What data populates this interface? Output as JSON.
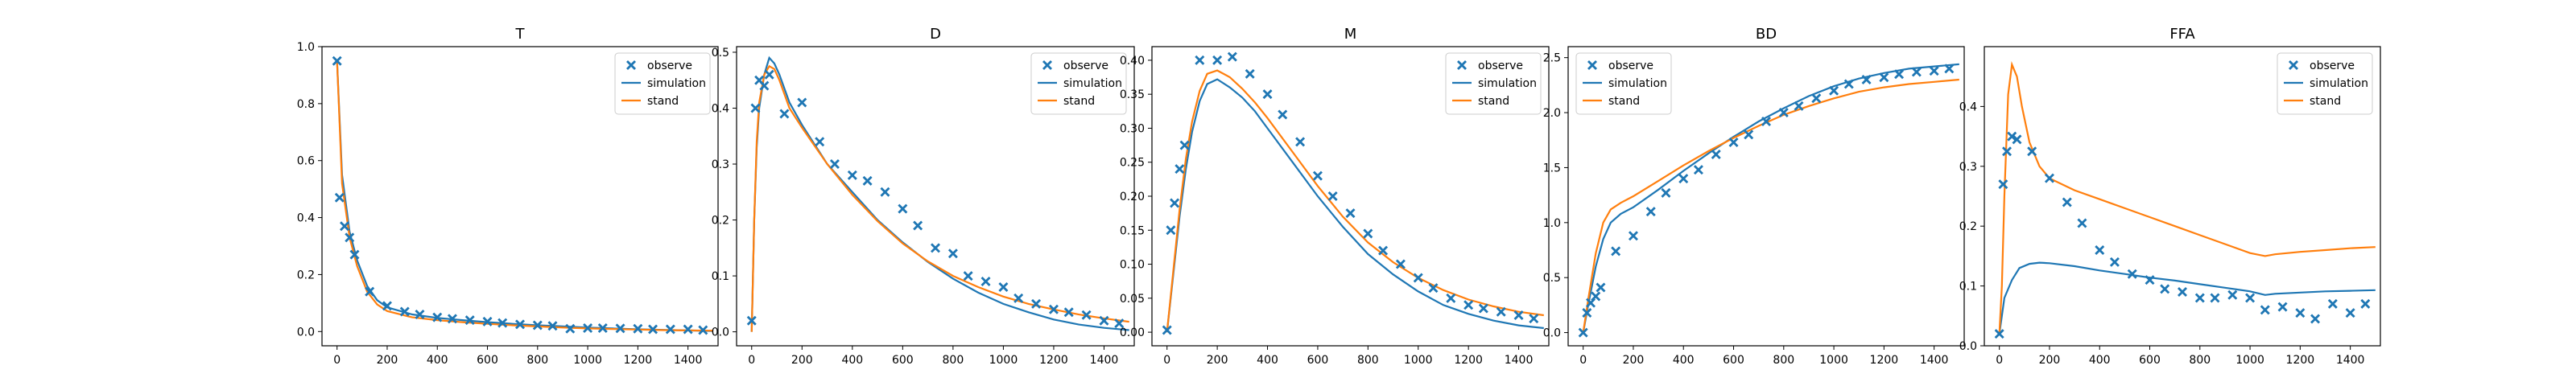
{
  "figure": {
    "legend_labels": [
      "observe",
      "simulation",
      "stand"
    ],
    "colors": {
      "observe": "#1f77b4",
      "simulation": "#1f77b4",
      "stand": "#ff7f0e"
    }
  },
  "chart_data": [
    {
      "type": "line",
      "title": "T",
      "xlabel": "",
      "ylabel": "",
      "xlim": [
        -60,
        1520
      ],
      "ylim": [
        -0.05,
        1.0
      ],
      "xticks": [
        0,
        200,
        400,
        600,
        800,
        1000,
        1200,
        1400
      ],
      "yticks": [
        0.0,
        0.2,
        0.4,
        0.6,
        0.8,
        1.0
      ],
      "ytick_labels": [
        "0.0",
        "0.2",
        "0.4",
        "0.6",
        "0.8",
        "1.0"
      ],
      "legend_position": "upper right",
      "series": [
        {
          "name": "observe",
          "kind": "scatter",
          "x": [
            0,
            10,
            30,
            50,
            70,
            130,
            200,
            270,
            330,
            400,
            460,
            530,
            600,
            660,
            730,
            800,
            860,
            930,
            1000,
            1060,
            1130,
            1200,
            1260,
            1330,
            1400,
            1460
          ],
          "y": [
            0.95,
            0.47,
            0.37,
            0.33,
            0.27,
            0.14,
            0.09,
            0.07,
            0.06,
            0.05,
            0.045,
            0.04,
            0.035,
            0.03,
            0.025,
            0.022,
            0.02,
            0.01,
            0.012,
            0.012,
            0.011,
            0.01,
            0.008,
            0.008,
            0.008,
            0.005
          ]
        },
        {
          "name": "simulation",
          "kind": "line",
          "x": [
            0,
            20,
            50,
            80,
            120,
            160,
            200,
            300,
            400,
            500,
            600,
            700,
            800,
            900,
            1000,
            1100,
            1200,
            1300,
            1400,
            1500
          ],
          "y": [
            0.95,
            0.55,
            0.35,
            0.25,
            0.16,
            0.11,
            0.085,
            0.06,
            0.048,
            0.04,
            0.033,
            0.027,
            0.022,
            0.018,
            0.014,
            0.011,
            0.008,
            0.006,
            0.004,
            0.002
          ]
        },
        {
          "name": "stand",
          "kind": "line",
          "x": [
            0,
            20,
            50,
            80,
            120,
            160,
            200,
            300,
            400,
            500,
            600,
            700,
            800,
            900,
            1000,
            1100,
            1200,
            1300,
            1400,
            1500
          ],
          "y": [
            0.95,
            0.52,
            0.33,
            0.23,
            0.14,
            0.095,
            0.072,
            0.05,
            0.04,
            0.033,
            0.027,
            0.022,
            0.018,
            0.014,
            0.011,
            0.009,
            0.007,
            0.005,
            0.004,
            0.003
          ]
        }
      ]
    },
    {
      "type": "line",
      "title": "D",
      "xlabel": "",
      "ylabel": "",
      "xlim": [
        -60,
        1520
      ],
      "ylim": [
        -0.025,
        0.51
      ],
      "xticks": [
        0,
        200,
        400,
        600,
        800,
        1000,
        1200,
        1400
      ],
      "yticks": [
        0.0,
        0.1,
        0.2,
        0.3,
        0.4,
        0.5
      ],
      "ytick_labels": [
        "0.0",
        "0.1",
        "0.2",
        "0.3",
        "0.4",
        "0.5"
      ],
      "legend_position": "upper right",
      "series": [
        {
          "name": "observe",
          "kind": "scatter",
          "x": [
            0,
            15,
            30,
            50,
            70,
            130,
            200,
            270,
            330,
            400,
            460,
            530,
            600,
            660,
            730,
            800,
            860,
            930,
            1000,
            1060,
            1130,
            1200,
            1260,
            1330,
            1400,
            1460
          ],
          "y": [
            0.02,
            0.4,
            0.45,
            0.44,
            0.46,
            0.39,
            0.41,
            0.34,
            0.3,
            0.28,
            0.27,
            0.25,
            0.22,
            0.19,
            0.15,
            0.14,
            0.1,
            0.09,
            0.08,
            0.06,
            0.05,
            0.04,
            0.035,
            0.03,
            0.02,
            0.015
          ]
        },
        {
          "name": "simulation",
          "kind": "line",
          "x": [
            0,
            10,
            20,
            30,
            50,
            70,
            90,
            110,
            150,
            200,
            300,
            400,
            500,
            600,
            700,
            800,
            900,
            1000,
            1100,
            1200,
            1300,
            1400,
            1500
          ],
          "y": [
            0.0,
            0.2,
            0.33,
            0.4,
            0.46,
            0.49,
            0.48,
            0.46,
            0.41,
            0.37,
            0.3,
            0.25,
            0.2,
            0.16,
            0.125,
            0.095,
            0.07,
            0.05,
            0.035,
            0.022,
            0.013,
            0.007,
            0.003
          ]
        },
        {
          "name": "stand",
          "kind": "line",
          "x": [
            0,
            10,
            20,
            30,
            50,
            70,
            90,
            110,
            150,
            200,
            300,
            400,
            500,
            600,
            700,
            800,
            900,
            1000,
            1100,
            1200,
            1300,
            1400,
            1500
          ],
          "y": [
            0.0,
            0.2,
            0.34,
            0.41,
            0.46,
            0.475,
            0.47,
            0.45,
            0.4,
            0.365,
            0.3,
            0.245,
            0.198,
            0.158,
            0.126,
            0.1,
            0.08,
            0.063,
            0.05,
            0.04,
            0.031,
            0.024,
            0.018
          ]
        }
      ]
    },
    {
      "type": "line",
      "title": "M",
      "xlabel": "",
      "ylabel": "",
      "xlim": [
        -60,
        1520
      ],
      "ylim": [
        -0.02,
        0.42
      ],
      "xticks": [
        0,
        200,
        400,
        600,
        800,
        1000,
        1200,
        1400
      ],
      "yticks": [
        0.0,
        0.05,
        0.1,
        0.15,
        0.2,
        0.25,
        0.3,
        0.35,
        0.4
      ],
      "ytick_labels": [
        "0.00",
        "0.05",
        "0.10",
        "0.15",
        "0.20",
        "0.25",
        "0.30",
        "0.35",
        "0.40"
      ],
      "legend_position": "upper right",
      "series": [
        {
          "name": "observe",
          "kind": "scatter",
          "x": [
            0,
            15,
            30,
            50,
            70,
            130,
            200,
            260,
            330,
            400,
            460,
            530,
            600,
            660,
            730,
            800,
            860,
            930,
            1000,
            1060,
            1130,
            1200,
            1260,
            1330,
            1400,
            1460
          ],
          "y": [
            0.003,
            0.15,
            0.19,
            0.24,
            0.275,
            0.4,
            0.4,
            0.405,
            0.38,
            0.35,
            0.32,
            0.28,
            0.23,
            0.2,
            0.175,
            0.145,
            0.12,
            0.1,
            0.08,
            0.065,
            0.05,
            0.04,
            0.035,
            0.03,
            0.025,
            0.02
          ]
        },
        {
          "name": "simulation",
          "kind": "line",
          "x": [
            0,
            25,
            50,
            75,
            100,
            130,
            160,
            200,
            250,
            300,
            350,
            400,
            500,
            600,
            700,
            800,
            900,
            1000,
            1100,
            1200,
            1300,
            1400,
            1500
          ],
          "y": [
            0.0,
            0.085,
            0.17,
            0.24,
            0.295,
            0.34,
            0.365,
            0.372,
            0.36,
            0.345,
            0.325,
            0.3,
            0.25,
            0.2,
            0.155,
            0.115,
            0.085,
            0.06,
            0.04,
            0.027,
            0.017,
            0.01,
            0.006
          ]
        },
        {
          "name": "stand",
          "kind": "line",
          "x": [
            0,
            25,
            50,
            75,
            100,
            130,
            160,
            200,
            250,
            300,
            350,
            400,
            500,
            600,
            700,
            800,
            900,
            1000,
            1100,
            1200,
            1300,
            1400,
            1500
          ],
          "y": [
            0.0,
            0.09,
            0.18,
            0.255,
            0.31,
            0.355,
            0.38,
            0.385,
            0.375,
            0.358,
            0.338,
            0.315,
            0.265,
            0.215,
            0.17,
            0.132,
            0.103,
            0.08,
            0.062,
            0.048,
            0.038,
            0.03,
            0.025
          ]
        }
      ]
    },
    {
      "type": "line",
      "title": "BD",
      "xlabel": "",
      "ylabel": "",
      "xlim": [
        -60,
        1520
      ],
      "ylim": [
        -0.12,
        2.6
      ],
      "xticks": [
        0,
        200,
        400,
        600,
        800,
        1000,
        1200,
        1400
      ],
      "yticks": [
        0.0,
        0.5,
        1.0,
        1.5,
        2.0,
        2.5
      ],
      "ytick_labels": [
        "0.0",
        "0.5",
        "1.0",
        "1.5",
        "2.0",
        "2.5"
      ],
      "legend_position": "upper left",
      "series": [
        {
          "name": "observe",
          "kind": "scatter",
          "x": [
            0,
            15,
            30,
            50,
            70,
            130,
            200,
            270,
            330,
            400,
            460,
            530,
            600,
            660,
            730,
            800,
            860,
            930,
            1000,
            1060,
            1130,
            1200,
            1260,
            1330,
            1400,
            1460
          ],
          "y": [
            0.0,
            0.18,
            0.27,
            0.33,
            0.41,
            0.74,
            0.88,
            1.1,
            1.27,
            1.4,
            1.48,
            1.62,
            1.73,
            1.8,
            1.92,
            2.0,
            2.06,
            2.13,
            2.2,
            2.26,
            2.3,
            2.32,
            2.35,
            2.37,
            2.38,
            2.4
          ]
        },
        {
          "name": "simulation",
          "kind": "line",
          "x": [
            0,
            20,
            50,
            80,
            110,
            150,
            200,
            300,
            400,
            500,
            600,
            700,
            800,
            900,
            1000,
            1100,
            1200,
            1300,
            1400,
            1500
          ],
          "y": [
            0.0,
            0.25,
            0.6,
            0.85,
            1.0,
            1.08,
            1.14,
            1.3,
            1.47,
            1.63,
            1.78,
            1.92,
            2.04,
            2.15,
            2.24,
            2.31,
            2.36,
            2.4,
            2.42,
            2.44
          ]
        },
        {
          "name": "stand",
          "kind": "line",
          "x": [
            0,
            20,
            50,
            80,
            110,
            150,
            200,
            300,
            400,
            500,
            600,
            700,
            800,
            900,
            1000,
            1100,
            1200,
            1300,
            1400,
            1500
          ],
          "y": [
            0.0,
            0.3,
            0.72,
            1.0,
            1.12,
            1.18,
            1.24,
            1.38,
            1.52,
            1.65,
            1.77,
            1.88,
            1.98,
            2.06,
            2.13,
            2.19,
            2.23,
            2.26,
            2.28,
            2.3
          ]
        }
      ]
    },
    {
      "type": "line",
      "title": "FFA",
      "xlabel": "",
      "ylabel": "",
      "xlim": [
        -60,
        1520
      ],
      "ylim": [
        0.0,
        0.5
      ],
      "xticks": [
        0,
        200,
        400,
        600,
        800,
        1000,
        1200,
        1400
      ],
      "yticks": [
        0.0,
        0.1,
        0.2,
        0.3,
        0.4
      ],
      "ytick_labels": [
        "0.0",
        "0.1",
        "0.2",
        "0.3",
        "0.4"
      ],
      "legend_position": "upper right",
      "series": [
        {
          "name": "observe",
          "kind": "scatter",
          "x": [
            0,
            15,
            30,
            50,
            70,
            130,
            200,
            270,
            330,
            400,
            460,
            530,
            600,
            660,
            730,
            800,
            860,
            930,
            1000,
            1060,
            1130,
            1200,
            1260,
            1330,
            1400,
            1460
          ],
          "y": [
            0.02,
            0.27,
            0.325,
            0.35,
            0.345,
            0.325,
            0.28,
            0.24,
            0.205,
            0.16,
            0.14,
            0.12,
            0.11,
            0.095,
            0.09,
            0.08,
            0.08,
            0.085,
            0.08,
            0.06,
            0.065,
            0.055,
            0.045,
            0.07,
            0.055,
            0.07
          ]
        },
        {
          "name": "simulation",
          "kind": "line",
          "x": [
            0,
            20,
            50,
            80,
            120,
            160,
            200,
            300,
            400,
            500,
            600,
            700,
            800,
            900,
            1000,
            1060,
            1100,
            1200,
            1300,
            1400,
            1500
          ],
          "y": [
            0.02,
            0.08,
            0.11,
            0.13,
            0.137,
            0.139,
            0.138,
            0.133,
            0.126,
            0.12,
            0.114,
            0.109,
            0.103,
            0.097,
            0.091,
            0.085,
            0.087,
            0.089,
            0.091,
            0.092,
            0.093
          ]
        },
        {
          "name": "stand",
          "kind": "line",
          "x": [
            0,
            10,
            20,
            35,
            50,
            70,
            90,
            120,
            160,
            200,
            300,
            400,
            500,
            600,
            700,
            800,
            900,
            1000,
            1060,
            1100,
            1200,
            1300,
            1400,
            1500
          ],
          "y": [
            0.02,
            0.1,
            0.25,
            0.42,
            0.47,
            0.45,
            0.4,
            0.34,
            0.3,
            0.28,
            0.26,
            0.245,
            0.23,
            0.215,
            0.2,
            0.185,
            0.17,
            0.155,
            0.15,
            0.153,
            0.157,
            0.16,
            0.163,
            0.165
          ]
        }
      ]
    }
  ]
}
